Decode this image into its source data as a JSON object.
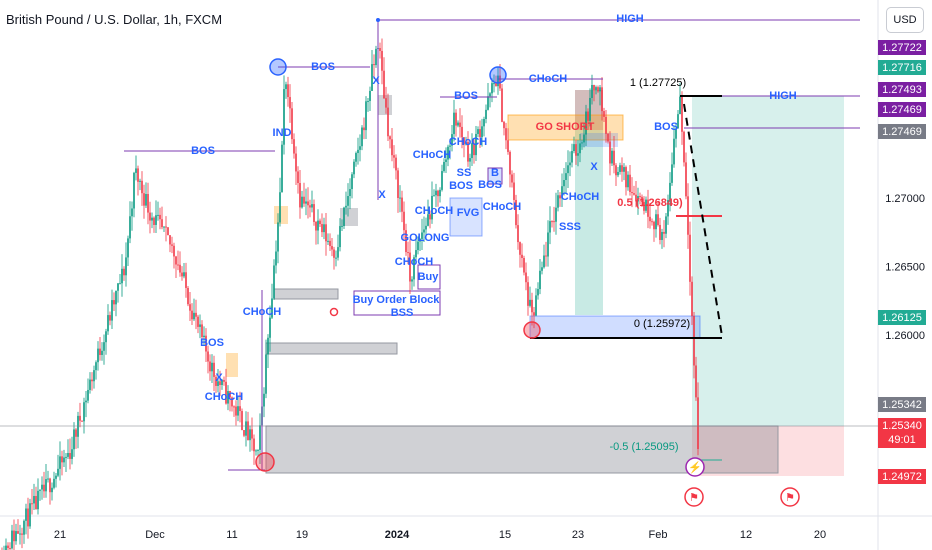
{
  "header": {
    "title": "British Pound / U.S. Dollar, 1h, FXCM",
    "currency": "USD"
  },
  "colors": {
    "up": "#089981",
    "down": "#f23645",
    "structure": "#7e3bb0",
    "label": "#2962ff",
    "purple_tag": "#7b1fa2",
    "green_tag": "#22ab94",
    "grey_tag": "#787b86",
    "red_tag": "#f23645"
  },
  "chart_data": {
    "type": "candlestick",
    "symbol": "GBPUSD",
    "interval": "1h",
    "y_ticks": [
      1.27,
      1.265,
      1.26
    ],
    "y_tick_labels": [
      "1.27000",
      "1.26500",
      "1.26000"
    ],
    "x_tick_labels": [
      "21",
      "Dec",
      "11",
      "19",
      "2024",
      "15",
      "23",
      "Feb",
      "12",
      "20"
    ],
    "price_tags": [
      {
        "value": "1.27722",
        "kind": "purple"
      },
      {
        "value": "1.27716",
        "kind": "green"
      },
      {
        "value": "1.27493",
        "kind": "purple"
      },
      {
        "value": "1.27469",
        "kind": "purple"
      },
      {
        "value": "1.27469",
        "kind": "grey"
      },
      {
        "value": "1.26125",
        "kind": "green"
      },
      {
        "value": "1.25342",
        "kind": "grey"
      },
      {
        "value": "1.24972",
        "kind": "red"
      }
    ],
    "last_price": {
      "value": "1.25340",
      "countdown": "49:01"
    },
    "annotations": [
      {
        "text": "HIGH"
      },
      {
        "text": "BOS"
      },
      {
        "text": "BOS"
      },
      {
        "text": "BOS"
      },
      {
        "text": "BOS"
      },
      {
        "text": "BOS"
      },
      {
        "text": "BOS"
      },
      {
        "text": "CHoCH"
      },
      {
        "text": "CHoCH"
      },
      {
        "text": "CHoCH"
      },
      {
        "text": "CHoCH"
      },
      {
        "text": "CHoCH"
      },
      {
        "text": "CHoCH"
      },
      {
        "text": "CHoCH"
      },
      {
        "text": "CHoCH"
      },
      {
        "text": "CHoCH"
      },
      {
        "text": "IND"
      },
      {
        "text": "X"
      },
      {
        "text": "X"
      },
      {
        "text": "X"
      },
      {
        "text": "X"
      },
      {
        "text": "GO SHORT"
      },
      {
        "text": "GOLONG"
      },
      {
        "text": "FVG"
      },
      {
        "text": "Buy"
      },
      {
        "text": "Buy Order Block"
      },
      {
        "text": "B"
      },
      {
        "text": "SS"
      },
      {
        "text": "BOS"
      },
      {
        "text": "BSS"
      },
      {
        "text": "SSS"
      },
      {
        "text": "1 (1.27725)"
      },
      {
        "text": "0.5 (1.26849)"
      },
      {
        "text": "0 (1.25972)"
      },
      {
        "text": "-0.5 (1.25095)"
      },
      {
        "text": "HIGH"
      }
    ]
  }
}
